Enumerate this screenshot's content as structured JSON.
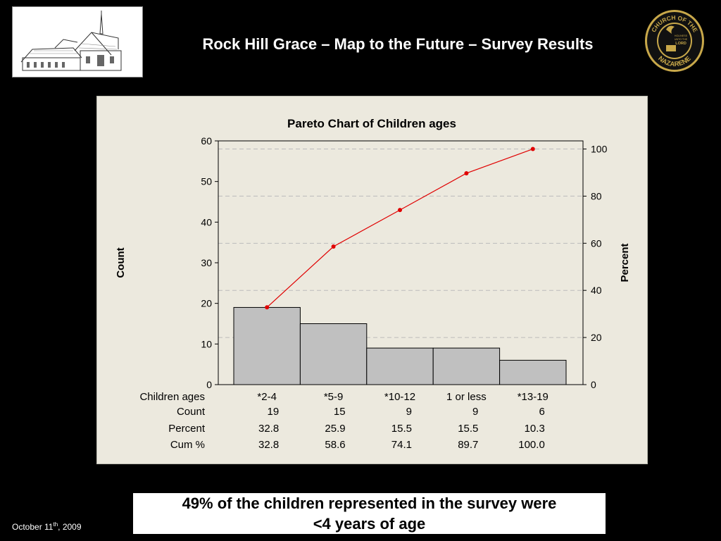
{
  "header": {
    "title": "Rock Hill Grace – Map to the Future – Survey Results"
  },
  "logo": {
    "ring_top": "CHURCH OF THE",
    "ring_bottom": "NAZARENE",
    "motto": [
      "HOLINESS",
      "UNTO THE",
      "LORD"
    ]
  },
  "chart_data": {
    "type": "pareto",
    "title": "Pareto Chart of Children ages",
    "ylabel_left": "Count",
    "ylabel_right": "Percent",
    "ylim_left": [
      0,
      60
    ],
    "yticks_left": [
      0,
      10,
      20,
      30,
      40,
      50,
      60
    ],
    "ylim_right": [
      0,
      100
    ],
    "yticks_right": [
      0,
      20,
      40,
      60,
      80,
      100
    ],
    "grid": "dashed horizontal",
    "categories": [
      "*2-4",
      "*5-9",
      "*10-12",
      "1 or less",
      "*13-19"
    ],
    "counts": [
      19,
      15,
      9,
      9,
      6
    ],
    "percent": [
      "32.8",
      "25.9",
      "15.5",
      "15.5",
      "10.3"
    ],
    "cumulative_percent": [
      "32.8",
      "58.6",
      "74.1",
      "89.7",
      "100.0"
    ],
    "table_labels": {
      "categories": "Children ages",
      "counts": "Count",
      "percent": "Percent",
      "cumulative": "Cum %"
    },
    "colors": {
      "bars": "#c0c0c0",
      "cumulative_line": "#e00000"
    }
  },
  "callout": {
    "line1": "49% of the children represented in the survey were",
    "line2": "<4 years of age"
  },
  "footer": {
    "date_day": "October 11",
    "date_suffix": "th",
    "date_year": ", 2009"
  }
}
